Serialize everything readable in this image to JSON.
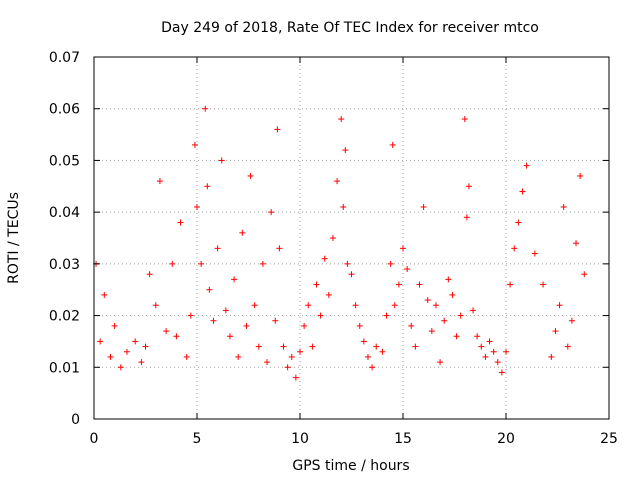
{
  "chart_data": {
    "type": "scatter",
    "title": "Day 249 of 2018, Rate Of TEC Index for receiver mtco",
    "xlabel": "GPS time / hours",
    "ylabel": "ROTI / TECUs",
    "xlim": [
      0,
      25
    ],
    "ylim": [
      0,
      0.07
    ],
    "x_ticks": [
      "0",
      "5",
      "10",
      "15",
      "20",
      "25"
    ],
    "y_ticks": [
      "0",
      "0.01",
      "0.02",
      "0.03",
      "0.04",
      "0.05",
      "0.06",
      "0.07"
    ],
    "grid": true,
    "marker": "+",
    "color": "#ff0000",
    "series": [
      {
        "x": [
          0.1,
          0.3,
          0.5,
          0.8,
          1.0,
          1.3,
          1.6,
          2.0,
          2.3,
          2.5,
          2.7,
          3.0,
          3.2,
          3.5,
          3.8,
          4.0,
          4.2,
          4.5,
          4.7,
          4.9,
          5.0,
          5.2,
          5.4,
          5.5,
          5.6,
          5.8,
          6.0,
          6.2,
          6.4,
          6.6,
          6.8,
          7.0,
          7.2,
          7.4,
          7.6,
          7.8,
          8.0,
          8.2,
          8.4,
          8.6,
          8.8,
          8.9,
          9.0,
          9.2,
          9.4,
          9.6,
          9.8,
          10.0,
          10.2,
          10.4,
          10.6,
          10.8,
          11.0,
          11.2,
          11.4,
          11.6,
          11.8,
          12.0,
          12.1,
          12.2,
          12.3,
          12.5,
          12.7,
          12.9,
          13.1,
          13.3,
          13.5,
          13.7,
          14.0,
          14.2,
          14.4,
          14.5,
          14.6,
          14.8,
          15.0,
          15.2,
          15.4,
          15.6,
          15.8,
          16.0,
          16.2,
          16.4,
          16.6,
          16.8,
          17.0,
          17.2,
          17.4,
          17.6,
          17.8,
          18.0,
          18.1,
          18.2,
          18.4,
          18.6,
          18.8,
          19.0,
          19.2,
          19.4,
          19.6,
          19.8,
          20.0,
          20.2,
          20.4,
          20.6,
          20.8,
          21.0,
          21.4,
          21.8,
          22.2,
          22.4,
          22.6,
          22.8,
          23.0,
          23.2,
          23.4,
          23.6,
          23.8
        ],
        "y": [
          0.03,
          0.015,
          0.024,
          0.012,
          0.018,
          0.01,
          0.013,
          0.015,
          0.011,
          0.014,
          0.028,
          0.022,
          0.046,
          0.017,
          0.03,
          0.016,
          0.038,
          0.012,
          0.02,
          0.053,
          0.041,
          0.03,
          0.06,
          0.045,
          0.025,
          0.019,
          0.033,
          0.05,
          0.021,
          0.016,
          0.027,
          0.012,
          0.036,
          0.018,
          0.047,
          0.022,
          0.014,
          0.03,
          0.011,
          0.04,
          0.019,
          0.056,
          0.033,
          0.014,
          0.01,
          0.012,
          0.008,
          0.013,
          0.018,
          0.022,
          0.014,
          0.026,
          0.02,
          0.031,
          0.024,
          0.035,
          0.046,
          0.058,
          0.041,
          0.052,
          0.03,
          0.028,
          0.022,
          0.018,
          0.015,
          0.012,
          0.01,
          0.014,
          0.013,
          0.02,
          0.03,
          0.053,
          0.022,
          0.026,
          0.033,
          0.029,
          0.018,
          0.014,
          0.026,
          0.041,
          0.023,
          0.017,
          0.022,
          0.011,
          0.019,
          0.027,
          0.024,
          0.016,
          0.02,
          0.058,
          0.039,
          0.045,
          0.021,
          0.016,
          0.014,
          0.012,
          0.015,
          0.013,
          0.011,
          0.009,
          0.013,
          0.026,
          0.033,
          0.038,
          0.044,
          0.049,
          0.032,
          0.026,
          0.012,
          0.017,
          0.022,
          0.041,
          0.014,
          0.019,
          0.034,
          0.047,
          0.028
        ]
      }
    ]
  }
}
